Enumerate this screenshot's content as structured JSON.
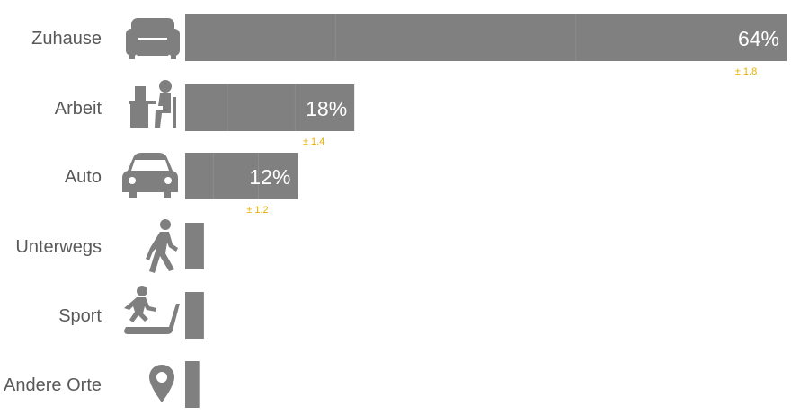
{
  "chart_data": {
    "type": "bar",
    "orientation": "horizontal",
    "categories": [
      "Zuhause",
      "Arbeit",
      "Auto",
      "Unterwegs",
      "Sport",
      "Andere Orte"
    ],
    "icons": [
      "sofa-icon",
      "desk-worker-icon",
      "car-icon",
      "walking-person-icon",
      "treadmill-icon",
      "map-pin-icon"
    ],
    "values": [
      64,
      18,
      12,
      2,
      2,
      1.5
    ],
    "value_labels": [
      "64%",
      "18%",
      "12%",
      "",
      "",
      ""
    ],
    "error_labels": [
      "± 1.8",
      "± 1.4",
      "± 1.2",
      "",
      "",
      ""
    ],
    "title": "",
    "xlabel": "",
    "ylabel": "",
    "xlim": [
      0,
      64
    ],
    "grid": false,
    "legend": "none",
    "colors": {
      "bar": "#808080",
      "bar_segment_line": "#8c8c8c",
      "error_text": "#e8b000",
      "category_text": "#595959",
      "value_text": "#ffffff",
      "icon": "#7f7f7f"
    }
  }
}
